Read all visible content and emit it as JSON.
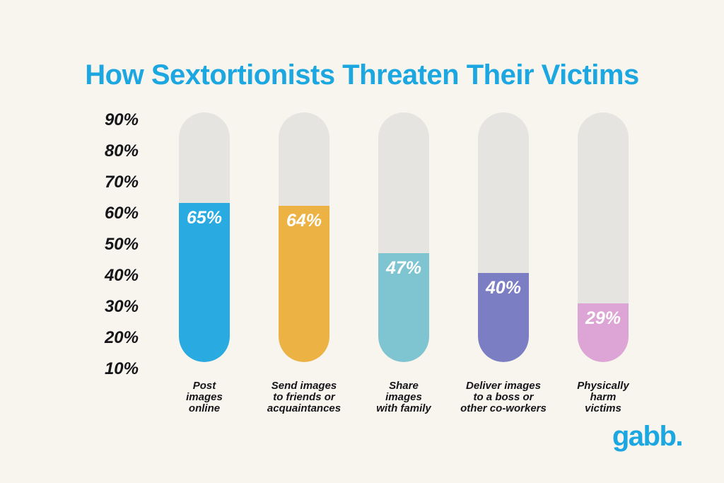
{
  "title": "How Sextortionists Threaten Their Victims",
  "chart_data": {
    "type": "bar",
    "title": "How Sextortionists Threaten Their Victims",
    "categories": [
      "Post\nimages\nonline",
      "Send images\nto friends or\nacquaintances",
      "Share\nimages\nwith family",
      "Deliver images\nto a boss or\nother co-workers",
      "Physically\nharm\nvictims"
    ],
    "values": [
      65,
      64,
      47,
      40,
      29
    ],
    "value_labels": [
      "65%",
      "64%",
      "47%",
      "40%",
      "29%"
    ],
    "bar_colors": [
      "#29abe2",
      "#ecb344",
      "#7fc5d1",
      "#7b7ec3",
      "#dda5d6"
    ],
    "track_color": "#e5e4e1",
    "y_ticks": [
      "90%",
      "80%",
      "70%",
      "60%",
      "50%",
      "40%",
      "30%",
      "20%",
      "10%"
    ],
    "ylim": [
      0,
      100
    ],
    "grid": false,
    "legend": false,
    "orientation": "vertical",
    "bar_style": "rounded-thermometer"
  },
  "footer": {
    "logo_text": "gabb."
  },
  "colors": {
    "background": "#f7f5ee",
    "accent_blue": "#1ca7e0",
    "text": "#15151a",
    "value_label": "#ffffff"
  }
}
